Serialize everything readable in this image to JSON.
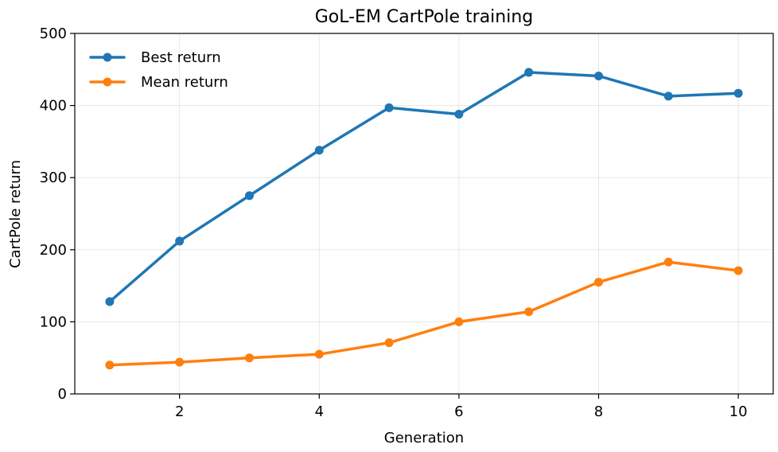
{
  "chart_data": {
    "type": "line",
    "title": "GoL-EM CartPole training",
    "xlabel": "Generation",
    "ylabel": "CartPole return",
    "xlim": [
      0.5,
      10.5
    ],
    "ylim": [
      0,
      500
    ],
    "xticks": [
      2,
      4,
      6,
      8,
      10
    ],
    "yticks": [
      0,
      100,
      200,
      300,
      400,
      500
    ],
    "grid": true,
    "legend_position": "upper-left",
    "x": [
      1,
      2,
      3,
      4,
      5,
      6,
      7,
      8,
      9,
      10
    ],
    "series": [
      {
        "name": "Best return",
        "color": "#1f77b4",
        "values": [
          128,
          212,
          275,
          338,
          397,
          388,
          446,
          441,
          413,
          417
        ]
      },
      {
        "name": "Mean return",
        "color": "#ff7f0e",
        "values": [
          40,
          44,
          50,
          55,
          71,
          100,
          114,
          155,
          183,
          171
        ]
      }
    ]
  }
}
